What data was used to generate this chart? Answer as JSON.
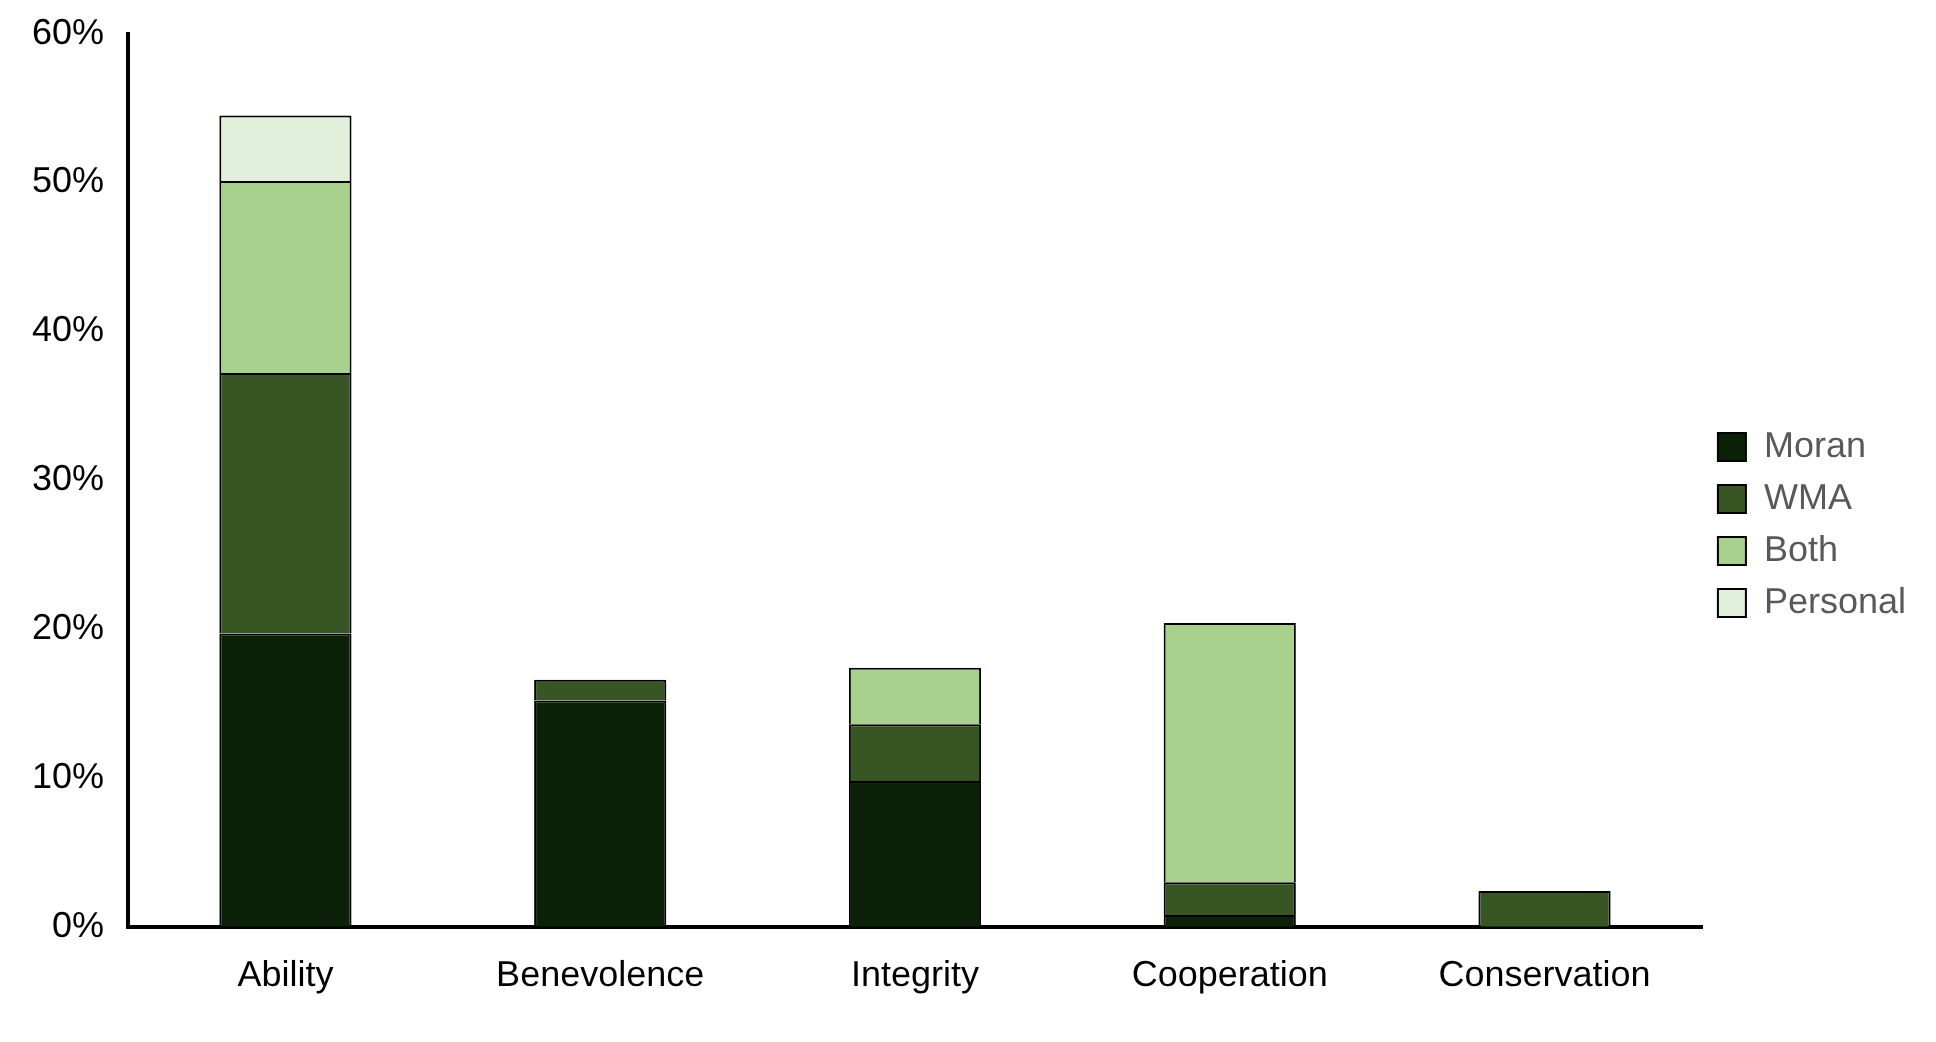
{
  "chart_data": {
    "type": "bar",
    "stacked": true,
    "categories": [
      "Ability",
      "Benevolence",
      "Integrity",
      "Cooperation",
      "Conservation"
    ],
    "series": [
      {
        "name": "Moran",
        "color": "#0b2108",
        "values": [
          19.7,
          15.2,
          9.8,
          0.8,
          0
        ]
      },
      {
        "name": "WMA",
        "color": "#375623",
        "values": [
          17.5,
          1.4,
          3.8,
          2.2,
          2.4
        ]
      },
      {
        "name": "Both",
        "color": "#a9d18e",
        "values": [
          12.9,
          0,
          3.8,
          17.4,
          0
        ]
      },
      {
        "name": "Personal",
        "color": "#e2efda",
        "values": [
          4.4,
          0,
          0,
          0,
          0
        ]
      }
    ],
    "ylim": [
      0,
      60
    ],
    "yticks": [
      {
        "value": 0,
        "label": "0%"
      },
      {
        "value": 10,
        "label": "10%"
      },
      {
        "value": 20,
        "label": "20%"
      },
      {
        "value": 30,
        "label": "30%"
      },
      {
        "value": 40,
        "label": "40%"
      },
      {
        "value": 50,
        "label": "50%"
      },
      {
        "value": 60,
        "label": "60%"
      }
    ],
    "grid": false,
    "legend": "right"
  }
}
